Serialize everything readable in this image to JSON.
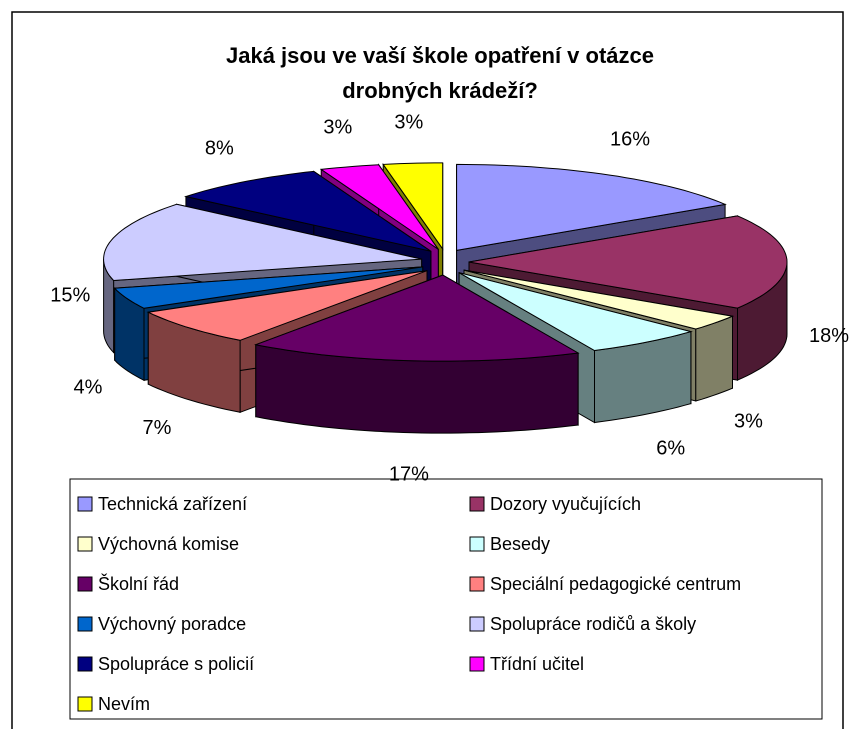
{
  "chart_data": {
    "type": "pie3d",
    "title": "Jaká jsou ve vaší škole opatření v otázce",
    "subtitle": "drobných krádeží?",
    "categories": [
      "Technická zařízení",
      "Dozory vyučujících",
      "Výchovná komise",
      "Besedy",
      "Školní řád",
      "Speciální pedagogické centrum",
      "Výchovný poradce",
      "Spolupráce rodičů a školy",
      "Spolupráce s policií",
      "Třídní učitel",
      "Nevím"
    ],
    "values": [
      16,
      18,
      3,
      6,
      17,
      7,
      4,
      15,
      8,
      3,
      3
    ],
    "value_labels": [
      "16%",
      "18%",
      "3%",
      "6%",
      "17%",
      "7%",
      "4%",
      "15%",
      "8%",
      "3%",
      "3%"
    ],
    "colors": [
      "#9999ff",
      "#993366",
      "#ffffcc",
      "#ccffff",
      "#660066",
      "#ff8080",
      "#0066cc",
      "#ccccff",
      "#000080",
      "#ff00ff",
      "#ffff00"
    ],
    "legend": "bottom"
  }
}
